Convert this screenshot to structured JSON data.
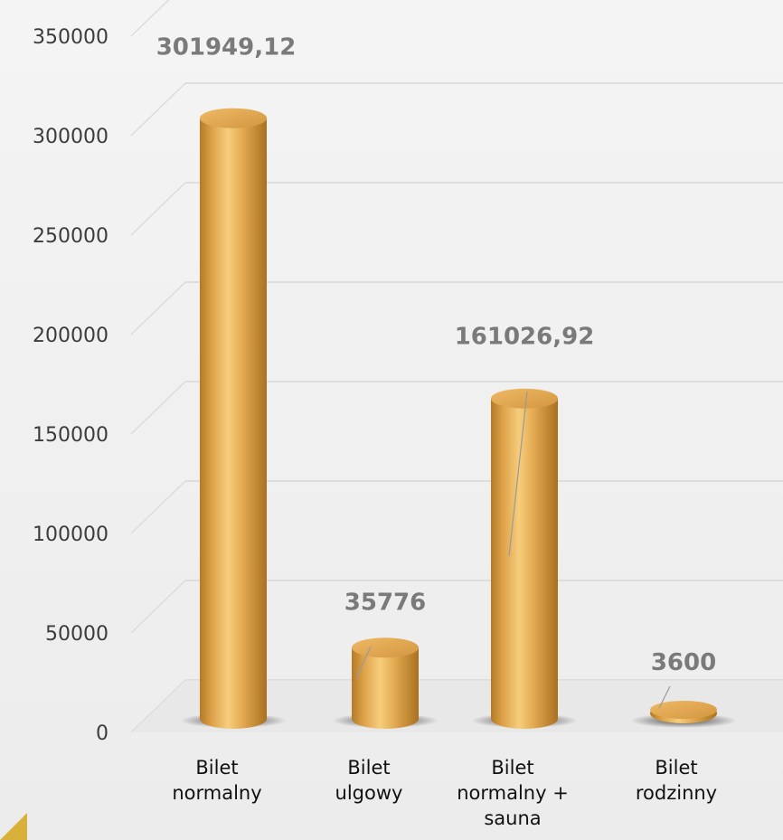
{
  "chart_data": {
    "type": "bar",
    "style": "3d-cylinder",
    "categories": [
      [
        "Bilet",
        "normalny"
      ],
      [
        "Bilet",
        "ulgowy"
      ],
      [
        "Bilet",
        "normalny +",
        "sauna"
      ],
      [
        "Bilet",
        "rodzinny"
      ]
    ],
    "values": [
      301949.12,
      35776,
      161026.92,
      3600
    ],
    "data_labels": [
      "301949,12",
      "35776",
      "161026,92",
      "3600"
    ],
    "y_ticks": [
      "0",
      "50000",
      "100000",
      "150000",
      "200000",
      "250000",
      "300000",
      "350000"
    ],
    "ylim": [
      0,
      350000
    ],
    "grid": true,
    "legend": "none",
    "colors": {
      "bar_light": "#f3c46e",
      "bar_mid": "#dea24a",
      "bar_dark": "#b47a25",
      "bar_top": "#e3a64d",
      "gridline": "#d7d7d7",
      "data_label": "#7a7a7a"
    }
  }
}
